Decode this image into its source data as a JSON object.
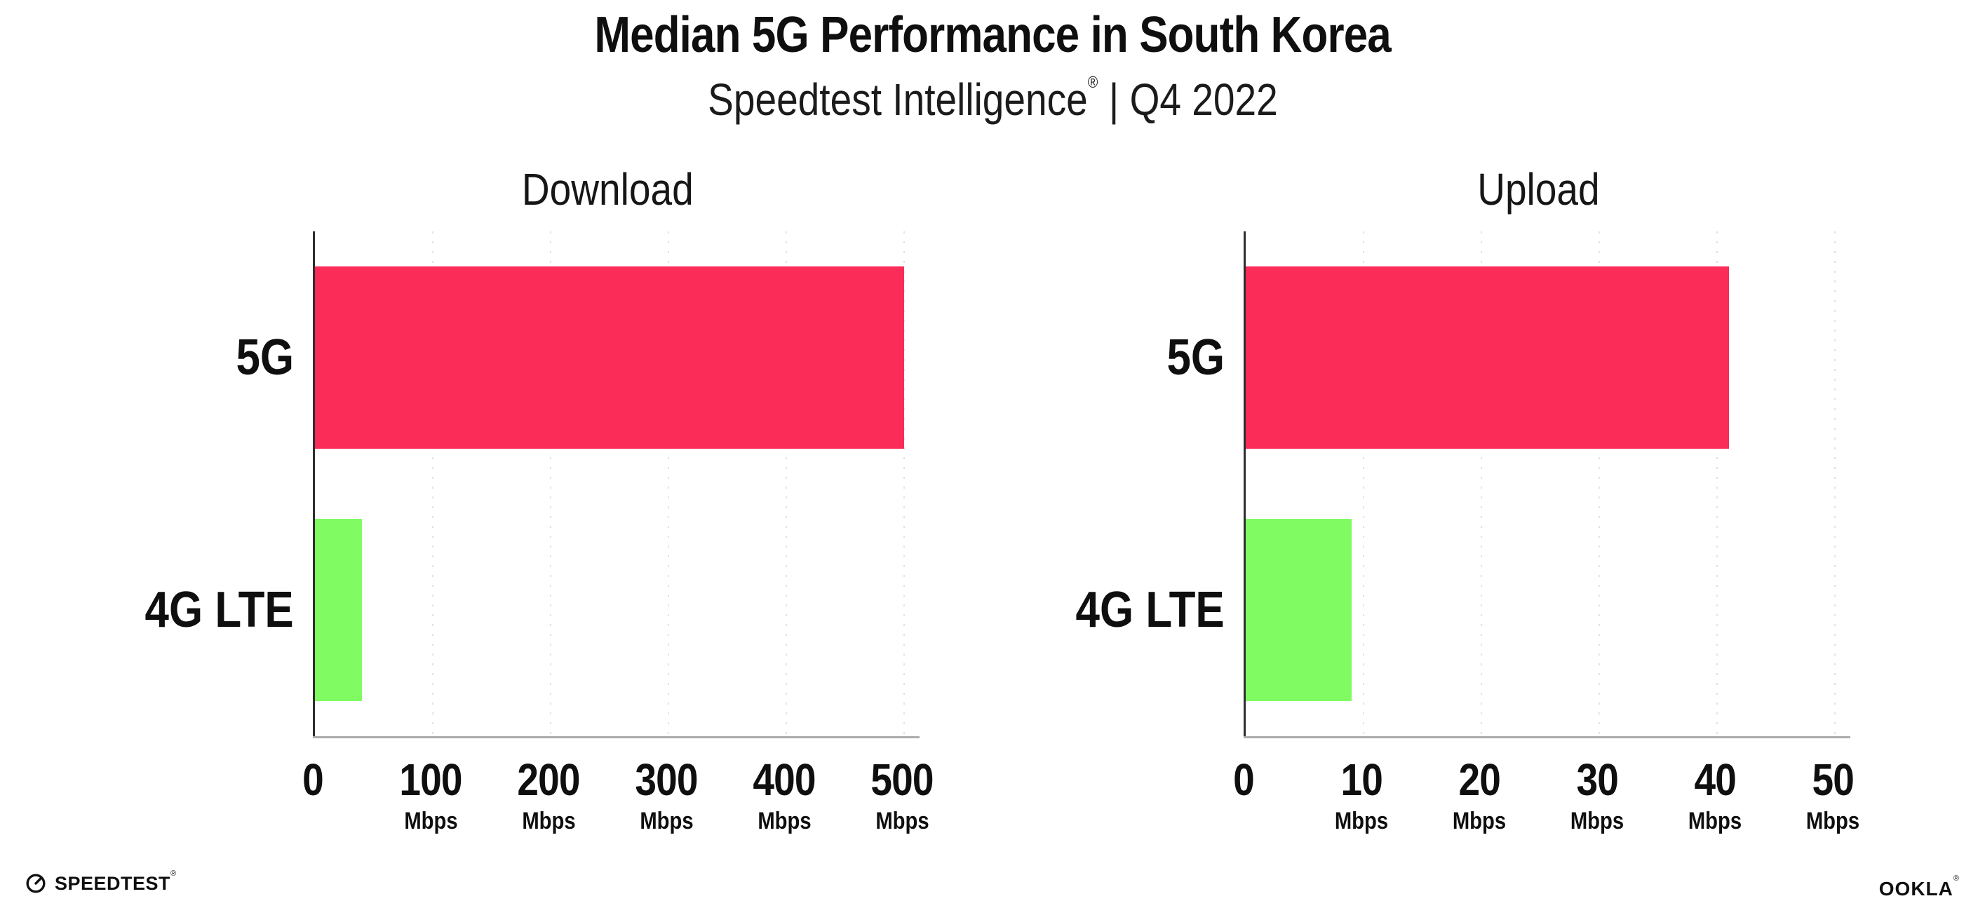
{
  "header": {
    "title": "Median 5G Performance in South Korea",
    "subtitle_brand": "Speedtest Intelligence",
    "subtitle_trademark": "®",
    "subtitle_separator": "|",
    "subtitle_period": "Q4 2022"
  },
  "colors": {
    "bar_5g": "#fb2d58",
    "bar_4g_lte": "#80fb62",
    "gridline": "#e2e2ed",
    "y_axis": "#2e2e2e",
    "x_axis": "#acacac",
    "text": "#0f0f0f"
  },
  "chart_data": [
    {
      "type": "bar",
      "orientation": "horizontal",
      "title": "Download",
      "categories": [
        "5G",
        "4G LTE"
      ],
      "values": [
        500,
        40
      ],
      "unit_label": "Mbps",
      "xlabel": "",
      "ylabel": "",
      "xlim": [
        0,
        500
      ],
      "xticks": [
        0,
        100,
        200,
        300,
        400,
        500
      ],
      "bar_colors": [
        "#fb2d58",
        "#80fb62"
      ],
      "grid": "vertical-dotted",
      "legend": "none"
    },
    {
      "type": "bar",
      "orientation": "horizontal",
      "title": "Upload",
      "categories": [
        "5G",
        "4G LTE"
      ],
      "values": [
        41,
        9
      ],
      "unit_label": "Mbps",
      "xlabel": "",
      "ylabel": "",
      "xlim": [
        0,
        50
      ],
      "xticks": [
        0,
        10,
        20,
        30,
        40,
        50
      ],
      "bar_colors": [
        "#fb2d58",
        "#80fb62"
      ],
      "grid": "vertical-dotted",
      "legend": "none"
    }
  ],
  "footer": {
    "speedtest_label": "SPEEDTEST",
    "speedtest_trademark": "®",
    "speedtest_icon": "gauge-icon",
    "ookla_label": "OOKLA",
    "ookla_trademark": "®"
  }
}
